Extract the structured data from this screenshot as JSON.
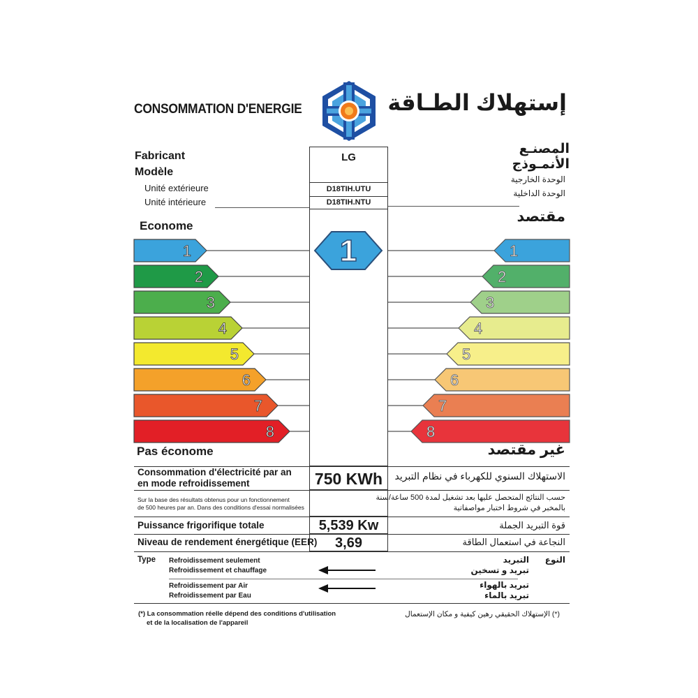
{
  "header": {
    "title_fr": "CONSOMMATION D'ENERGIE",
    "title_ar": "إستهلاك الطـاقة"
  },
  "logo": {
    "icon": "energy-agency-logo-icon",
    "colors": [
      "#1e4fa3",
      "#4aa3df",
      "#f07a1a"
    ]
  },
  "identity": {
    "fabricant_label": "Fabricant",
    "modele_label": "Modèle",
    "unite_ext_label": "Unité extérieure",
    "unite_int_label": "Unité intérieure",
    "fabricant_value": "LG",
    "unite_ext_value": "D18TIH.UTU",
    "unite_int_value": "D18TIH.NTU",
    "fabricant_ar": "المصنـع",
    "modele_ar": "الأنمـوذج",
    "unite_ext_ar": "الوحدة الخارجية",
    "unite_int_ar": "الوحدة الداخلية"
  },
  "scale": {
    "econome_fr": "Econome",
    "econome_ar": "مقتصد",
    "pas_econome_fr": "Pas économe",
    "pas_econome_ar": "غير مقتصد",
    "classes": [
      {
        "label": "1",
        "color": "#3ba3dc",
        "color_right": "#3ba3dc"
      },
      {
        "label": "2",
        "color": "#1f9a47",
        "color_right": "#52b06a"
      },
      {
        "label": "3",
        "color": "#4cae4c",
        "color_right": "#9fd08a"
      },
      {
        "label": "4",
        "color": "#b9d235",
        "color_right": "#e7ec8e"
      },
      {
        "label": "5",
        "color": "#f3e92e",
        "color_right": "#f7ef8a"
      },
      {
        "label": "6",
        "color": "#f4a12a",
        "color_right": "#f7c775"
      },
      {
        "label": "7",
        "color": "#e9572b",
        "color_right": "#ea7f52"
      },
      {
        "label": "8",
        "color": "#e21f26",
        "color_right": "#e8343b"
      }
    ],
    "rating": "1",
    "rating_color": "#3ba3dc"
  },
  "consumption": {
    "label_fr_1": "Consommation d'électricité par an",
    "label_fr_2": "en mode refroidissement",
    "value": "750 KWh",
    "label_ar": "الاستهلاك السنوي للكهرباء في نظام التبريد",
    "note_fr_1": "Sur la base des résultats obtenus pour un fonctionnement",
    "note_fr_2": "de 500 heures par an. Dans des conditions d'essai normalisées",
    "note_ar_1": "حسب النتائج المتحصل عليها بعد تشغيل لمدة 500 ساعة/سنة",
    "note_ar_2": "بالمخبر في شروط اختبار مواصفاتية"
  },
  "power": {
    "label_fr": "Puissance frigorifique totale",
    "value": "5,539 Kw",
    "label_ar": "قوة التبريد الجملة"
  },
  "eer": {
    "label_fr": "Niveau de rendement énergétique (EER)",
    "value": "3,69",
    "label_ar": "النجاعة في استعمال الطاقة"
  },
  "type": {
    "label_fr": "Type",
    "label_ar": "النوع",
    "options_fr_1": [
      "Refroidissement seulement",
      "Refroidissement et chauffage"
    ],
    "options_ar_1": [
      "التبريد",
      "تبريد و تسخين"
    ],
    "options_fr_2": [
      "Refroidissement par Air",
      "Refroidissement par Eau"
    ],
    "options_ar_2": [
      "تبريد بالهواء",
      "تبريد بالماء"
    ]
  },
  "footnote": {
    "fr_1": "(*) La consommation réelle dépend des conditions d'utilisation",
    "fr_2": "et de la localisation de l'appareil",
    "ar": "(*) الإستهلاك الحقيقي رهين كيفية و مكان الإستعمال"
  }
}
